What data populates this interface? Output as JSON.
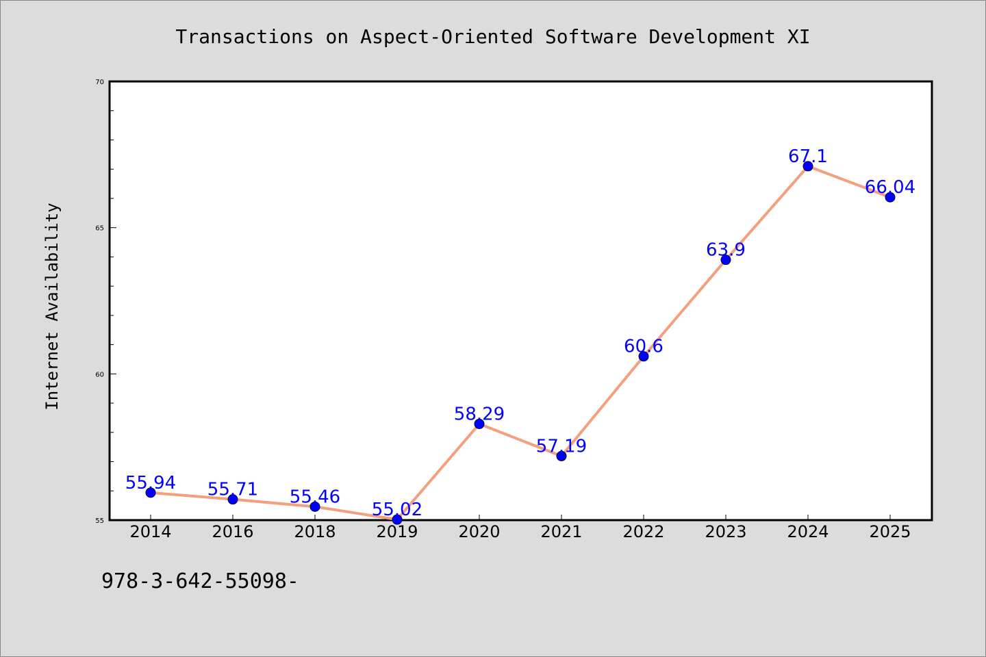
{
  "chart_data": {
    "type": "line",
    "title": "Transactions on Aspect-Oriented Software Development XI",
    "xlabel": "",
    "ylabel": "Internet Availability",
    "categories": [
      "2014",
      "2016",
      "2018",
      "2019",
      "2020",
      "2021",
      "2022",
      "2023",
      "2024",
      "2025"
    ],
    "series": [
      {
        "values": [
          55.94,
          55.71,
          55.46,
          55.02,
          58.29,
          57.19,
          60.6,
          63.9,
          67.1,
          66.04
        ],
        "labels": [
          "55.94",
          "55.71",
          "55.46",
          "55.02",
          "58.29",
          "57.19",
          "60.6",
          "63.9",
          "67.1",
          "66.04"
        ],
        "line_color": "#f4a07f",
        "marker_color": "#0000ff"
      }
    ],
    "ylim": [
      55,
      70
    ],
    "yticks": [
      "55",
      "60",
      "65",
      "70"
    ],
    "grid": false,
    "legend": "none"
  },
  "footnote": "978-3-642-55098-"
}
